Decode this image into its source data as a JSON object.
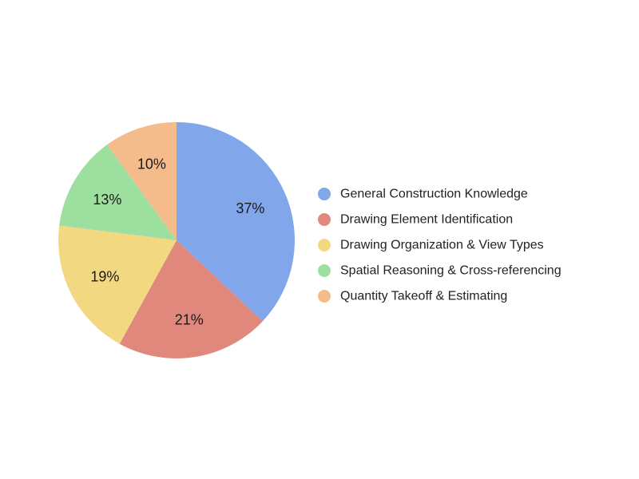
{
  "chart_data": {
    "type": "pie",
    "title": "",
    "legend_position": "right",
    "start_angle": "12 o'clock, clockwise",
    "slices": [
      {
        "name": "General Construction Knowledge",
        "value": 37,
        "label": "37%",
        "color": "#82a6ea"
      },
      {
        "name": "Drawing Element Identification",
        "value": 21,
        "label": "21%",
        "color": "#e0887b"
      },
      {
        "name": "Drawing Organization & View Types",
        "value": 19,
        "label": "19%",
        "color": "#f3d882"
      },
      {
        "name": "Spatial Reasoning & Cross-referencing",
        "value": 13,
        "label": "13%",
        "color": "#9ddf9e"
      },
      {
        "name": "Quantity Takeoff & Estimating",
        "value": 10,
        "label": "10%",
        "color": "#f4bc8b"
      }
    ]
  }
}
